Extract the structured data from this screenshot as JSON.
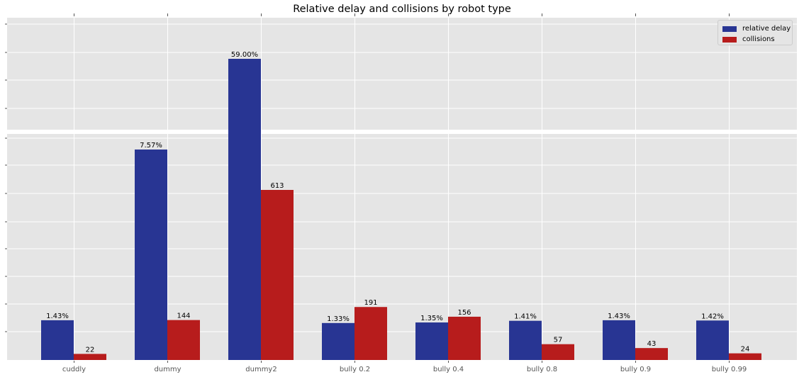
{
  "chart_data": {
    "type": "bar",
    "title": "Relative delay and collisions by robot type",
    "xlabel": "",
    "ylabel": "",
    "categories": [
      "cuddly",
      "dummy",
      "dummy2",
      "bully 0.2",
      "bully 0.4",
      "bully 0.8",
      "bully 0.9",
      "bully 0.99"
    ],
    "series": [
      {
        "name": "relative delay",
        "color": "#283593",
        "values": [
          1.43,
          7.57,
          59.0,
          1.33,
          1.35,
          1.41,
          1.43,
          1.42
        ],
        "labels": [
          "1.43%",
          "7.57%",
          "59.00%",
          "1.33%",
          "1.35%",
          "1.41%",
          "1.43%",
          "1.42%"
        ]
      },
      {
        "name": "collisions",
        "color": "#b71c1c",
        "values": [
          22,
          144,
          613,
          191,
          156,
          57,
          43,
          24
        ],
        "labels": [
          "22",
          "144",
          "613",
          "191",
          "156",
          "57",
          "43",
          "24"
        ]
      }
    ],
    "broken_axis": true,
    "grid": true,
    "legend_position": "upper right",
    "background_color": "#e5e5e5",
    "grid_color": "#ffffff"
  }
}
